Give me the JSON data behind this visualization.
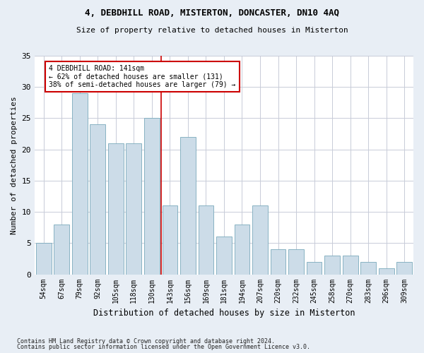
{
  "title1": "4, DEBDHILL ROAD, MISTERTON, DONCASTER, DN10 4AQ",
  "title2": "Size of property relative to detached houses in Misterton",
  "xlabel": "Distribution of detached houses by size in Misterton",
  "ylabel": "Number of detached properties",
  "footnote1": "Contains HM Land Registry data © Crown copyright and database right 2024.",
  "footnote2": "Contains public sector information licensed under the Open Government Licence v3.0.",
  "categories": [
    "54sqm",
    "67sqm",
    "79sqm",
    "92sqm",
    "105sqm",
    "118sqm",
    "130sqm",
    "143sqm",
    "156sqm",
    "169sqm",
    "181sqm",
    "194sqm",
    "207sqm",
    "220sqm",
    "232sqm",
    "245sqm",
    "258sqm",
    "270sqm",
    "283sqm",
    "296sqm",
    "309sqm"
  ],
  "values": [
    5,
    8,
    29,
    24,
    21,
    21,
    25,
    11,
    22,
    11,
    6,
    8,
    11,
    4,
    4,
    2,
    3,
    3,
    2,
    1,
    2
  ],
  "bar_color": "#ccdce8",
  "bar_edge_color": "#7aaabb",
  "annotation_line_color": "#cc0000",
  "annotation_line_index": 7,
  "annotation_box_text": "4 DEBDHILL ROAD: 141sqm\n← 62% of detached houses are smaller (131)\n38% of semi-detached houses are larger (79) →",
  "annotation_box_color": "#cc0000",
  "ylim": [
    0,
    35
  ],
  "yticks": [
    0,
    5,
    10,
    15,
    20,
    25,
    30,
    35
  ],
  "bg_color": "#e8eef5",
  "plot_bg_color": "#ffffff",
  "grid_color": "#c8ccd8"
}
